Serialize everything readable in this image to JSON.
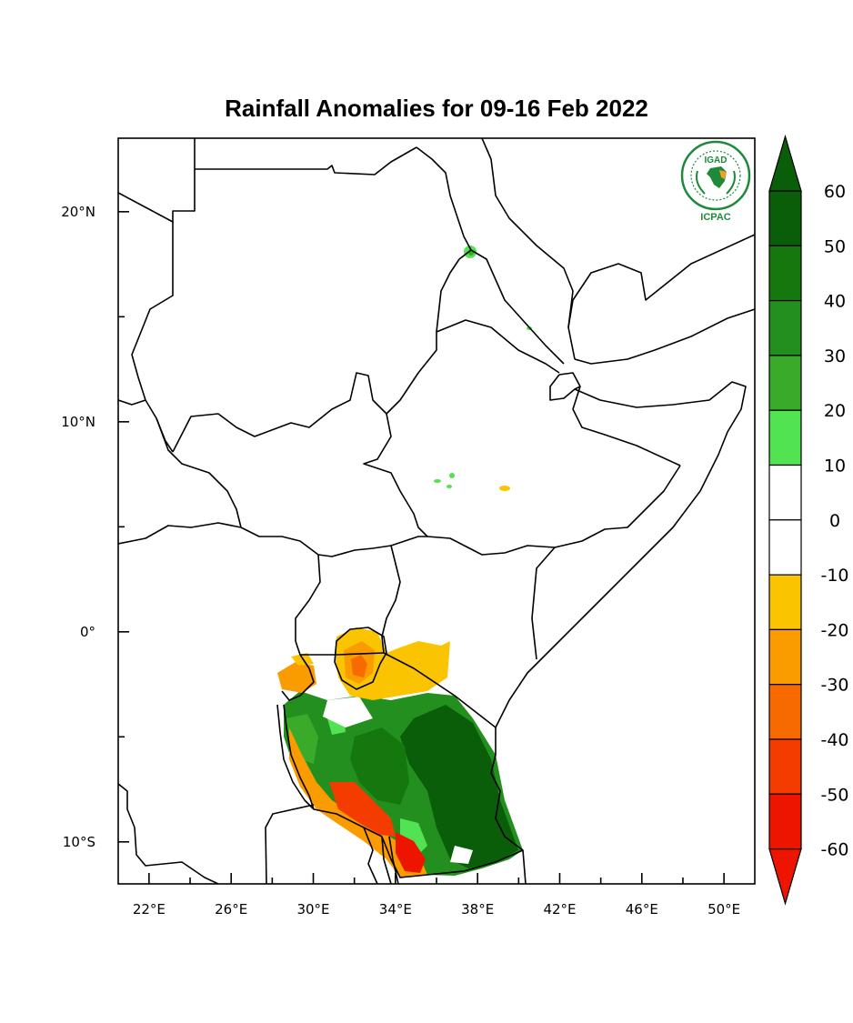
{
  "title": "Rainfall Anomalies for 09-16 Feb 2022",
  "logo": {
    "top_text": "IGAD",
    "bottom_text": "ICPAC"
  },
  "map": {
    "lon_range": [
      20.5,
      51.5
    ],
    "lat_range": [
      -12,
      23.5
    ],
    "x_ticks": [
      {
        "lon": 22,
        "label": "22°E"
      },
      {
        "lon": 26,
        "label": "26°E"
      },
      {
        "lon": 30,
        "label": "30°E"
      },
      {
        "lon": 34,
        "label": "34°E"
      },
      {
        "lon": 38,
        "label": "38°E"
      },
      {
        "lon": 42,
        "label": "42°E"
      },
      {
        "lon": 46,
        "label": "46°E"
      },
      {
        "lon": 50,
        "label": "50°E"
      }
    ],
    "y_ticks": [
      {
        "lat": 20,
        "label": "20°N"
      },
      {
        "lat": 10,
        "label": "10°N"
      },
      {
        "lat": 0,
        "label": "0°"
      },
      {
        "lat": -10,
        "label": "10°S"
      }
    ]
  },
  "colorbar": {
    "levels": [
      "60",
      "50",
      "40",
      "30",
      "20",
      "10",
      "0",
      "-10",
      "-20",
      "-30",
      "-40",
      "-50",
      "-60"
    ],
    "colors": [
      "#0a5e0a",
      "#14780f",
      "#238f1e",
      "#3aaa2a",
      "#52e352",
      "#ffffff",
      "#ffffff",
      "#fbc400",
      "#fa9b00",
      "#f76a00",
      "#f43c00",
      "#ee1500"
    ],
    "top_triangle_color": "#0a5e0a",
    "bottom_triangle_color": "#ee1500"
  }
}
